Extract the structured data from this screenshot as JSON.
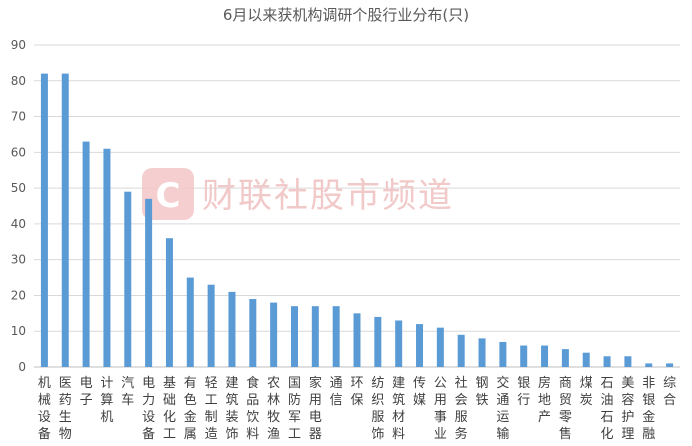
{
  "chart_data": {
    "type": "bar",
    "title": "6月以来获机构调研个股行业分布(只)",
    "xlabel": "",
    "ylabel": "",
    "ylim": [
      0,
      90
    ],
    "yticks": [
      0,
      10,
      20,
      30,
      40,
      50,
      60,
      70,
      80,
      90
    ],
    "grid": true,
    "legend": "none",
    "bar_color": "#5b9bd5",
    "categories": [
      "机械设备",
      "医药生物",
      "电子",
      "计算机",
      "汽车",
      "电力设备",
      "基础化工",
      "有色金属",
      "轻工制造",
      "建筑装饰",
      "食品饮料",
      "农林牧渔",
      "国防军工",
      "家用电器",
      "通信",
      "环保",
      "纺织服饰",
      "建筑材料",
      "传媒",
      "公用事业",
      "社会服务",
      "钢铁",
      "交通运输",
      "银行",
      "房地产",
      "商贸零售",
      "煤炭",
      "石油石化",
      "美容护理",
      "非银金融",
      "综合"
    ],
    "values": [
      82,
      82,
      63,
      61,
      49,
      47,
      36,
      25,
      23,
      21,
      19,
      18,
      17,
      17,
      17,
      15,
      14,
      13,
      12,
      11,
      9,
      8,
      7,
      6,
      6,
      5,
      4,
      3,
      3,
      1,
      1
    ]
  },
  "watermark": {
    "logo_letter": "C",
    "text": "财联社股市频道",
    "logo_color": "#e8a5a5",
    "text_color": "#f1c9c9"
  }
}
